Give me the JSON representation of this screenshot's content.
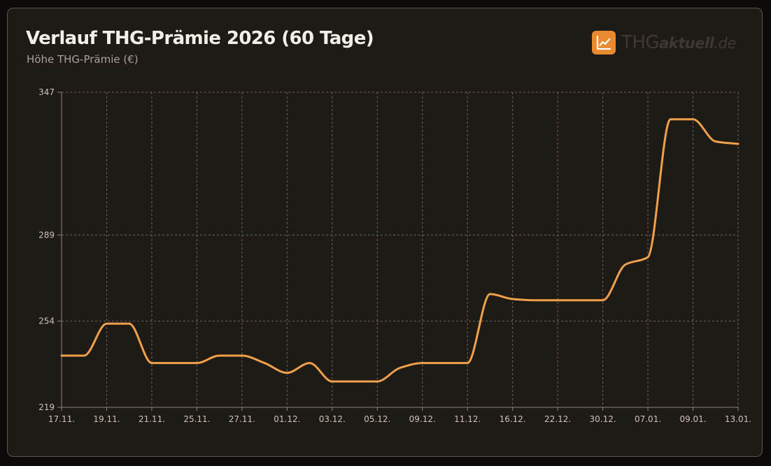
{
  "header": {
    "title": "Verlauf THG-Prämie 2026 (60 Tage)",
    "subtitle": "Höhe THG-Prämie (€)"
  },
  "brand": {
    "part1": "THG",
    "part2": "aktuell",
    "part3": ".de",
    "icon": "line-chart-icon",
    "accent_color": "#e88a2f"
  },
  "chart_data": {
    "type": "line",
    "title": "Verlauf THG-Prämie 2026 (60 Tage)",
    "ylabel": "Höhe THG-Prämie (€)",
    "ylim": [
      219,
      347
    ],
    "y_ticks": [
      219,
      254,
      289,
      347
    ],
    "grid": true,
    "line_color": "#f0a04b",
    "x_tick_labels": [
      "17.11.",
      "19.11.",
      "21.11.",
      "25.11.",
      "27.11.",
      "01.12.",
      "03.12.",
      "05.12.",
      "09.12.",
      "11.12.",
      "16.12.",
      "22.12.",
      "30.12.",
      "07.01.",
      "09.01.",
      "13.01."
    ],
    "series": [
      {
        "x": [
          0,
          0.5,
          1,
          1.5,
          2,
          3,
          3.5,
          4,
          4.5,
          5,
          5.5,
          6,
          7,
          7.5,
          8,
          9,
          9.5,
          10,
          10.5,
          11,
          11.5,
          12,
          12.5,
          13,
          13.5,
          14,
          14.5,
          15
        ],
        "values": [
          240,
          240,
          253,
          253,
          237,
          237,
          240,
          240,
          237,
          233,
          237,
          229.5,
          229.5,
          235,
          237,
          237,
          265,
          263,
          262.5,
          262.5,
          262.5,
          262.5,
          277,
          280,
          336,
          336,
          327,
          326
        ]
      }
    ]
  }
}
